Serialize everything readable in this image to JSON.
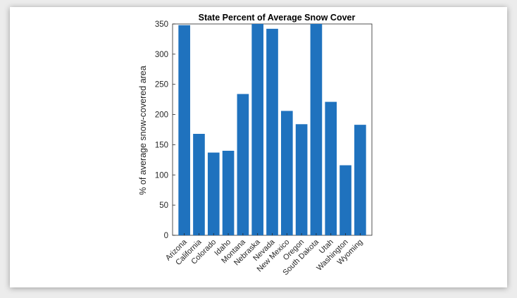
{
  "chart_data": {
    "type": "bar",
    "title": "State Percent of Average Snow Cover",
    "xlabel": "",
    "ylabel": "% of average snow-covered area",
    "categories": [
      "Arizona",
      "California",
      "Colorado",
      "Idaho",
      "Montana",
      "Nebraska",
      "Nevada",
      "New Mexico",
      "Oregon",
      "South Dakota",
      "Utah",
      "Washington",
      "Wyoming"
    ],
    "values": [
      348,
      168,
      137,
      140,
      234,
      350,
      342,
      206,
      184,
      350,
      221,
      116,
      183
    ],
    "ylim": [
      0,
      350
    ],
    "yticks": [
      "0",
      "50",
      "100",
      "150",
      "200",
      "250",
      "300",
      "350"
    ],
    "bar_color": "#1f72be",
    "grid": false,
    "legend": "none"
  }
}
